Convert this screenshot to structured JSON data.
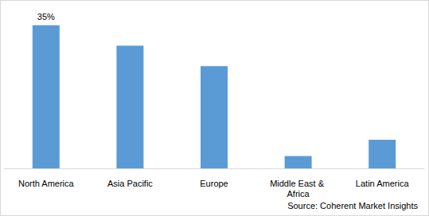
{
  "chart_data": {
    "type": "bar",
    "categories": [
      "North America",
      "Asia Pacific",
      "Europe",
      "Middle East & Africa",
      "Latin America"
    ],
    "values": [
      35,
      30,
      25,
      3,
      7
    ],
    "value_labels": [
      "35%",
      null,
      null,
      null,
      null
    ],
    "data_labels": true,
    "color": "#5b9bd5",
    "ylim": [
      0,
      40
    ],
    "yticks": [
      0,
      40
    ],
    "grid": false,
    "tick_labels": "x",
    "annotation": "Source: Coherent Market Insights"
  }
}
